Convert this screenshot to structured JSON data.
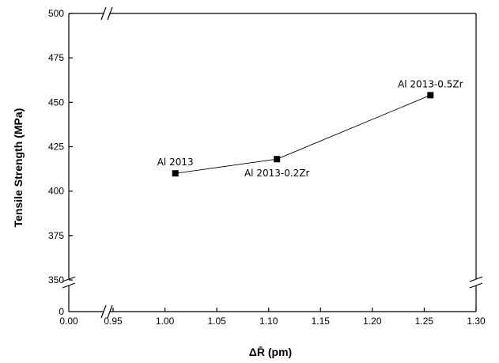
{
  "chart_data": {
    "type": "scatter",
    "title": "",
    "xlabel": "ΔR̄ (pm)",
    "ylabel": "Tensile Strength (MPa)",
    "x_break": [
      0.0,
      0.95
    ],
    "y_break": [
      0,
      350
    ],
    "xlim": [
      0.95,
      1.3
    ],
    "ylim": [
      350,
      500
    ],
    "x_ticks": [
      0.95,
      1.0,
      1.05,
      1.1,
      1.15,
      1.2,
      1.25,
      1.3
    ],
    "x_tick_labels": [
      "0.95",
      "1.00",
      "1.05",
      "1.10",
      "1.15",
      "1.20",
      "1.25",
      "1.30"
    ],
    "x_origin_label": "0.00",
    "y_ticks": [
      350,
      375,
      400,
      425,
      450,
      475,
      500
    ],
    "y_tick_labels": [
      "350",
      "375",
      "400",
      "425",
      "450",
      "475",
      "500"
    ],
    "y_origin_label": "0",
    "grid": false,
    "series": [
      {
        "points": [
          {
            "x": 1.01,
            "y": 410,
            "label": "Al 2013",
            "label_pos": "above"
          },
          {
            "x": 1.108,
            "y": 418,
            "label": "Al 2013-0.2Zr",
            "label_pos": "below"
          },
          {
            "x": 1.256,
            "y": 454,
            "label": "Al 2013-0.5Zr",
            "label_pos": "above"
          }
        ],
        "connected": true
      }
    ]
  }
}
